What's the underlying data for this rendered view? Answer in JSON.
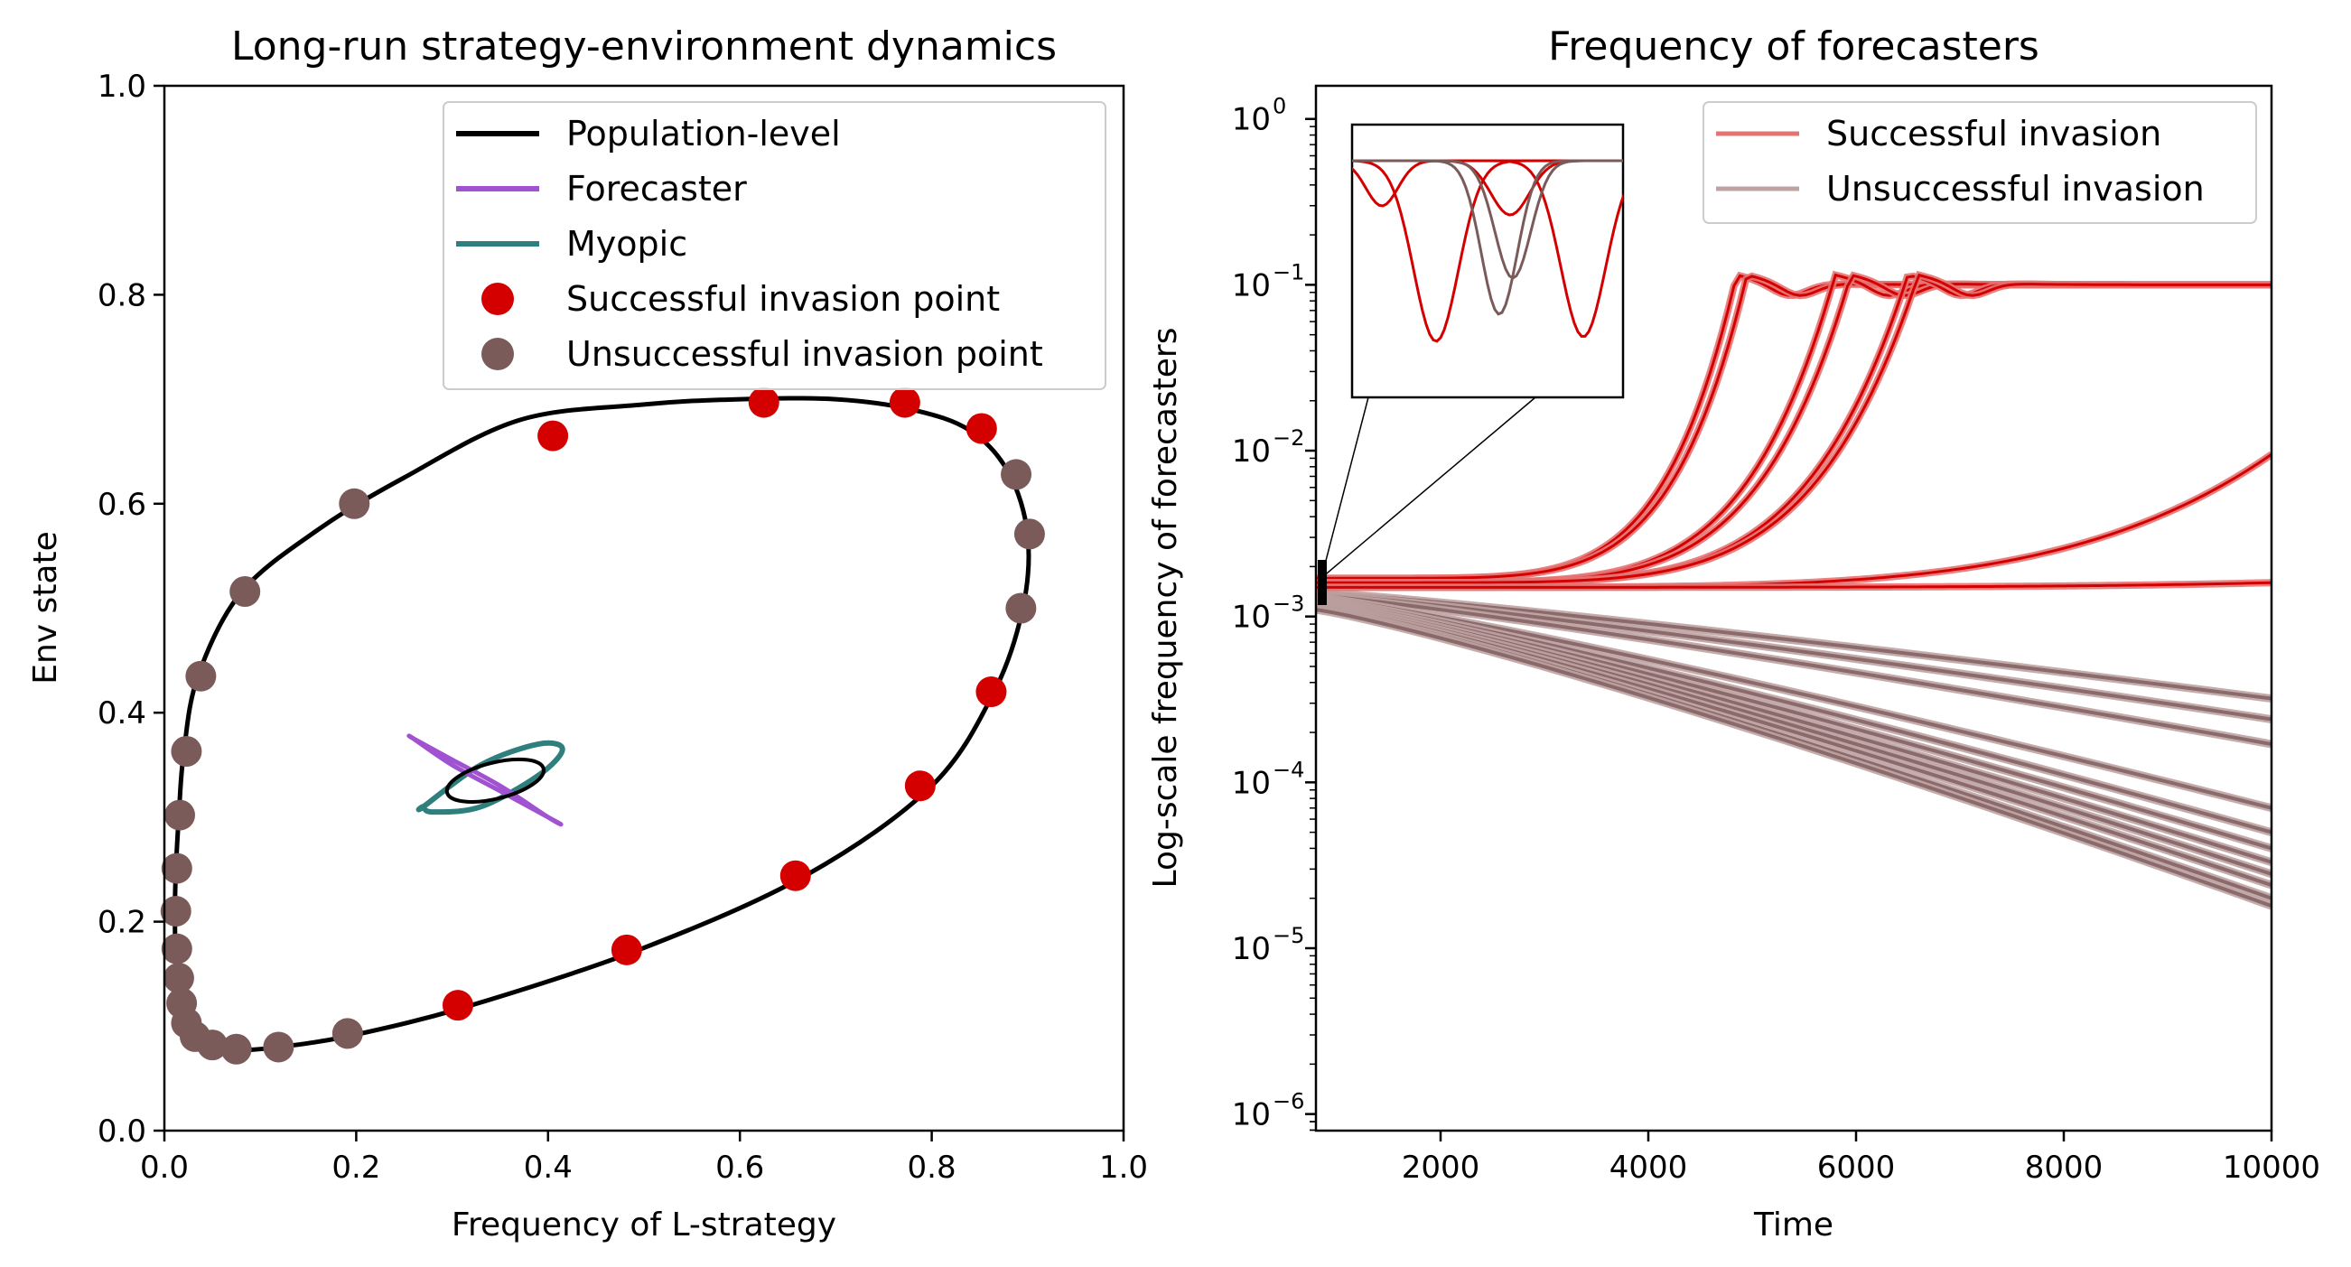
{
  "colors": {
    "population": "#000000",
    "forecaster": "#a052d0",
    "myopic": "#2f7f7f",
    "success": "#d40000",
    "unsuccess": "#7b5a5a",
    "success_line": "#e57373",
    "unsuccess_line": "#bfa3a3"
  },
  "chart_data": [
    {
      "type": "scatter",
      "title": "Long-run strategy-environment dynamics",
      "xlabel": "Frequency of L-strategy",
      "ylabel": "Env state",
      "xlim": [
        0,
        1
      ],
      "ylim": [
        0,
        1
      ],
      "xticks": [
        "0.0",
        "0.2",
        "0.4",
        "0.6",
        "0.8",
        "1.0"
      ],
      "yticks": [
        "0.0",
        "0.2",
        "0.4",
        "0.6",
        "0.8",
        "1.0"
      ],
      "legend": {
        "position": "top-right",
        "entries": [
          "Population-level",
          "Forecaster",
          "Myopic",
          "Successful invasion point",
          "Unsuccessful invasion point"
        ]
      },
      "population_cycle": [
        [
          0.37,
          0.68
        ],
        [
          0.5,
          0.695
        ],
        [
          0.6,
          0.7
        ],
        [
          0.7,
          0.7
        ],
        [
          0.78,
          0.69
        ],
        [
          0.84,
          0.67
        ],
        [
          0.88,
          0.63
        ],
        [
          0.9,
          0.57
        ],
        [
          0.895,
          0.5
        ],
        [
          0.865,
          0.42
        ],
        [
          0.8,
          0.33
        ],
        [
          0.67,
          0.245
        ],
        [
          0.5,
          0.175
        ],
        [
          0.32,
          0.12
        ],
        [
          0.2,
          0.092
        ],
        [
          0.12,
          0.08
        ],
        [
          0.07,
          0.077
        ],
        [
          0.045,
          0.082
        ],
        [
          0.028,
          0.1
        ],
        [
          0.017,
          0.125
        ],
        [
          0.012,
          0.16
        ],
        [
          0.011,
          0.21
        ],
        [
          0.012,
          0.25
        ],
        [
          0.015,
          0.3
        ],
        [
          0.02,
          0.36
        ],
        [
          0.035,
          0.435
        ],
        [
          0.08,
          0.515
        ],
        [
          0.16,
          0.575
        ],
        [
          0.25,
          0.625
        ]
      ],
      "forecaster_cycle": [
        [
          0.26,
          0.375
        ],
        [
          0.3,
          0.35
        ],
        [
          0.35,
          0.325
        ],
        [
          0.41,
          0.295
        ],
        [
          0.4,
          0.3
        ],
        [
          0.35,
          0.33
        ],
        [
          0.3,
          0.355
        ],
        [
          0.26,
          0.375
        ]
      ],
      "myopic_cycle": [
        [
          0.27,
          0.31
        ],
        [
          0.33,
          0.35
        ],
        [
          0.39,
          0.37
        ],
        [
          0.415,
          0.365
        ],
        [
          0.39,
          0.34
        ],
        [
          0.33,
          0.31
        ],
        [
          0.28,
          0.305
        ],
        [
          0.27,
          0.31
        ]
      ],
      "successful_points": [
        [
          0.405,
          0.665
        ],
        [
          0.625,
          0.697
        ],
        [
          0.772,
          0.697
        ],
        [
          0.852,
          0.672
        ],
        [
          0.862,
          0.42
        ],
        [
          0.788,
          0.33
        ],
        [
          0.658,
          0.244
        ],
        [
          0.482,
          0.173
        ],
        [
          0.306,
          0.12
        ]
      ],
      "unsuccessful_points": [
        [
          0.198,
          0.6
        ],
        [
          0.084,
          0.516
        ],
        [
          0.038,
          0.435
        ],
        [
          0.023,
          0.363
        ],
        [
          0.016,
          0.302
        ],
        [
          0.013,
          0.251
        ],
        [
          0.012,
          0.21
        ],
        [
          0.013,
          0.174
        ],
        [
          0.015,
          0.146
        ],
        [
          0.018,
          0.122
        ],
        [
          0.023,
          0.103
        ],
        [
          0.032,
          0.09
        ],
        [
          0.05,
          0.082
        ],
        [
          0.075,
          0.078
        ],
        [
          0.119,
          0.08
        ],
        [
          0.191,
          0.093
        ],
        [
          0.888,
          0.628
        ],
        [
          0.902,
          0.571
        ],
        [
          0.893,
          0.5
        ]
      ]
    },
    {
      "type": "line",
      "title": "Frequency of forecasters",
      "xlabel": "Time",
      "ylabel": "Log-scale frequency of forecasters",
      "xlim": [
        800,
        10000
      ],
      "ylim_log10": [
        -6.1,
        0.2
      ],
      "yscale": "log",
      "xticks": [
        "2000",
        "4000",
        "6000",
        "8000",
        "10000"
      ],
      "ytick_bases": [
        "10",
        "10",
        "10",
        "10",
        "10",
        "10",
        "10"
      ],
      "ytick_exponents": [
        "0",
        "−1",
        "−2",
        "−3",
        "−4",
        "−5",
        "−6"
      ],
      "legend": {
        "position": "top-right",
        "entries": [
          "Successful invasion",
          "Unsuccessful invasion"
        ]
      },
      "successful_curves": [
        {
          "start": 0.0017,
          "t_rise": 4850,
          "plateau": 0.115
        },
        {
          "start": 0.0017,
          "t_rise": 4950,
          "plateau": 0.115
        },
        {
          "start": 0.0016,
          "t_rise": 5800,
          "plateau": 0.115
        },
        {
          "start": 0.0016,
          "t_rise": 5950,
          "plateau": 0.115
        },
        {
          "start": 0.0016,
          "t_rise": 6500,
          "plateau": 0.115
        },
        {
          "start": 0.0016,
          "t_rise": 6600,
          "plateau": 0.115
        },
        {
          "start": 0.0015,
          "end": 0.0095
        },
        {
          "start": 0.0015,
          "end": 0.0016
        }
      ],
      "unsuccessful_curve_endpoints": [
        0.00032,
        0.00024,
        0.00017,
        7e-05,
        5e-05,
        4e-05,
        3.3e-05,
        2.8e-05,
        2.4e-05,
        2e-05,
        1.8e-05
      ],
      "inset": {
        "description_series": "zoom of early time window",
        "successful": 3,
        "unsuccessful": 2
      }
    }
  ]
}
